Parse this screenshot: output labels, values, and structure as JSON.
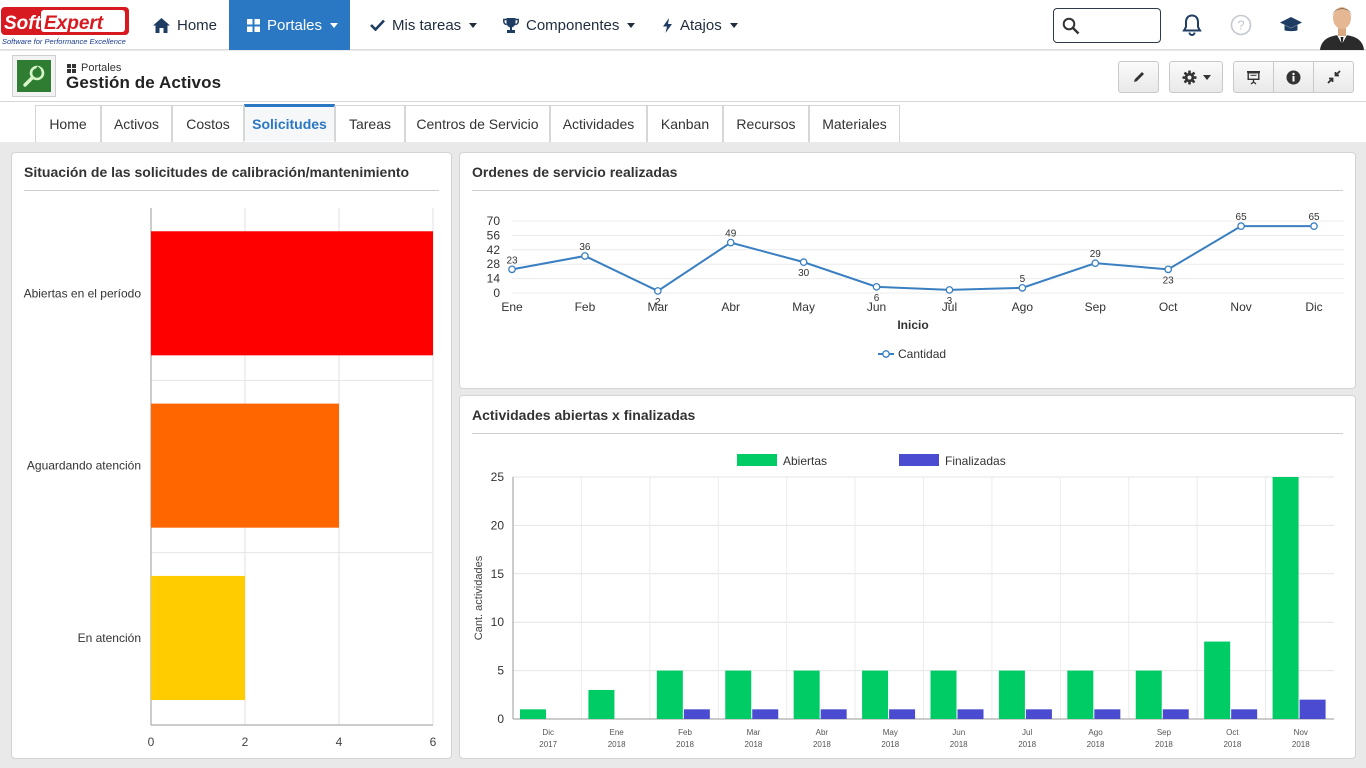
{
  "nav": {
    "logo_text": "SoftExpert",
    "logo_tagline": "Software for Performance Excellence",
    "items": [
      {
        "label": "Home",
        "icon": "home-icon"
      },
      {
        "label": "Portales",
        "icon": "grid-icon"
      },
      {
        "label": "Mis tareas",
        "icon": "check-icon"
      },
      {
        "label": "Componentes",
        "icon": "trophy-icon"
      },
      {
        "label": "Atajos",
        "icon": "bolt-icon"
      }
    ],
    "search_value": ""
  },
  "header": {
    "breadcrumb": "Portales",
    "title": "Gestión de Activos"
  },
  "tabs": [
    {
      "label": "Home"
    },
    {
      "label": "Activos"
    },
    {
      "label": "Costos"
    },
    {
      "label": "Solicitudes",
      "active": true
    },
    {
      "label": "Tareas"
    },
    {
      "label": "Centros de Servicio"
    },
    {
      "label": "Actividades"
    },
    {
      "label": "Kanban"
    },
    {
      "label": "Recursos"
    },
    {
      "label": "Materiales"
    }
  ],
  "chart_data": [
    {
      "type": "bar",
      "orientation": "horizontal",
      "title": "Situación de las solicitudes de calibración/mantenimiento",
      "categories": [
        "Abiertas en el período",
        "Aguardando atención",
        "En atención"
      ],
      "values": [
        6,
        4,
        2
      ],
      "colors": [
        "#ff0000",
        "#ff6600",
        "#ffcc00"
      ],
      "xlim": [
        0,
        6
      ],
      "xticks": [
        0,
        2,
        4,
        6
      ],
      "grid": true
    },
    {
      "type": "line",
      "title": "Ordenes de servicio realizadas",
      "categories": [
        "Ene",
        "Feb",
        "Mar",
        "Abr",
        "May",
        "Jun",
        "Jul",
        "Ago",
        "Sep",
        "Oct",
        "Nov",
        "Dic"
      ],
      "series": [
        {
          "name": "Cantidad",
          "values": [
            23,
            36,
            2,
            49,
            30,
            6,
            3,
            5,
            29,
            23,
            65,
            65
          ],
          "color": "#3a7fc1"
        }
      ],
      "xlabel": "Inicio",
      "ylim": [
        0,
        70
      ],
      "yticks": [
        0,
        14,
        28,
        42,
        56,
        70
      ],
      "legend": "bottom",
      "grid": true
    },
    {
      "type": "bar",
      "title": "Actividades abiertas x finalizadas",
      "categories": [
        {
          "month": "Dic",
          "year": "2017"
        },
        {
          "month": "Ene",
          "year": "2018"
        },
        {
          "month": "Feb",
          "year": "2018"
        },
        {
          "month": "Mar",
          "year": "2018"
        },
        {
          "month": "Abr",
          "year": "2018"
        },
        {
          "month": "May",
          "year": "2018"
        },
        {
          "month": "Jun",
          "year": "2018"
        },
        {
          "month": "Jul",
          "year": "2018"
        },
        {
          "month": "Ago",
          "year": "2018"
        },
        {
          "month": "Sep",
          "year": "2018"
        },
        {
          "month": "Oct",
          "year": "2018"
        },
        {
          "month": "Nov",
          "year": "2018"
        }
      ],
      "series": [
        {
          "name": "Abiertas",
          "values": [
            1,
            3,
            5,
            5,
            5,
            5,
            5,
            5,
            5,
            5,
            8,
            25
          ],
          "color": "#00cc66"
        },
        {
          "name": "Finalizadas",
          "values": [
            0,
            0,
            1,
            1,
            1,
            1,
            1,
            1,
            1,
            1,
            1,
            2
          ],
          "color": "#4b4bd1"
        }
      ],
      "ylabel": "Cant. actividades",
      "ylim": [
        0,
        25
      ],
      "yticks": [
        0,
        5,
        10,
        15,
        20,
        25
      ],
      "legend": "top",
      "grid": true
    }
  ]
}
